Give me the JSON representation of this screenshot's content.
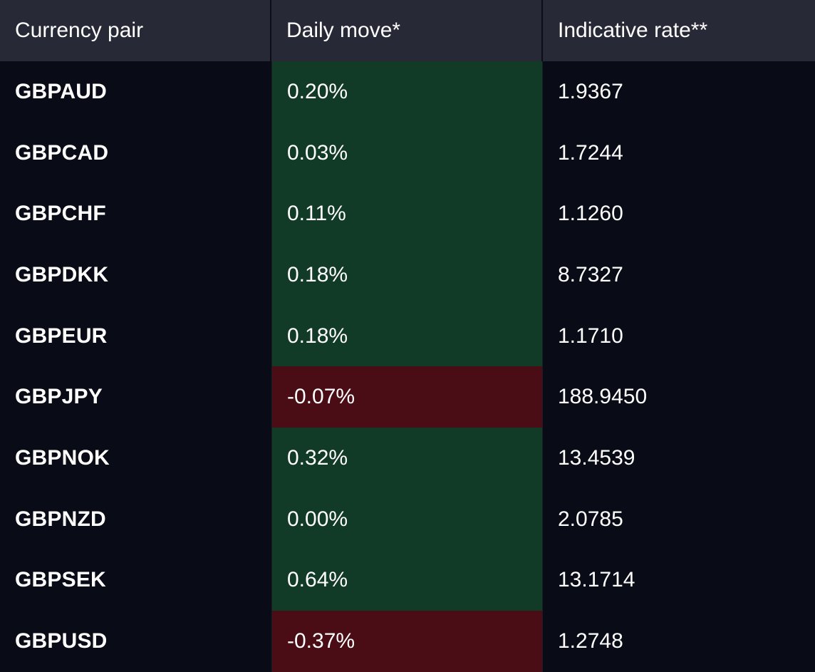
{
  "headers": {
    "pair": "Currency pair",
    "move": "Daily move*",
    "rate": "Indicative rate**"
  },
  "colors": {
    "positive_cell": "#113a27",
    "negative_cell": "#4a0c15",
    "header_bg": "#272936",
    "page_bg": "#090b16"
  },
  "rows": [
    {
      "pair": "GBPAUD",
      "move": "0.20%",
      "rate": "1.9367",
      "trend": "up"
    },
    {
      "pair": "GBPCAD",
      "move": "0.03%",
      "rate": "1.7244",
      "trend": "up"
    },
    {
      "pair": "GBPCHF",
      "move": "0.11%",
      "rate": "1.1260",
      "trend": "up"
    },
    {
      "pair": "GBPDKK",
      "move": "0.18%",
      "rate": "8.7327",
      "trend": "up"
    },
    {
      "pair": "GBPEUR",
      "move": "0.18%",
      "rate": "1.1710",
      "trend": "up"
    },
    {
      "pair": "GBPJPY",
      "move": "-0.07%",
      "rate": "188.9450",
      "trend": "down"
    },
    {
      "pair": "GBPNOK",
      "move": "0.32%",
      "rate": "13.4539",
      "trend": "up"
    },
    {
      "pair": "GBPNZD",
      "move": "0.00%",
      "rate": "2.0785",
      "trend": "up"
    },
    {
      "pair": "GBPSEK",
      "move": "0.64%",
      "rate": "13.1714",
      "trend": "up"
    },
    {
      "pair": "GBPUSD",
      "move": "-0.37%",
      "rate": "1.2748",
      "trend": "down"
    }
  ]
}
